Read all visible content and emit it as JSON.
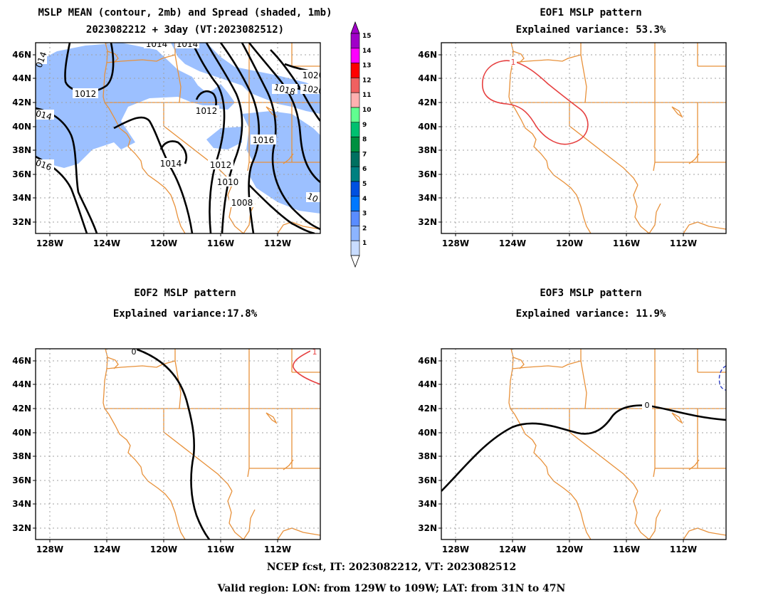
{
  "panels": [
    {
      "title1": "MSLP MEAN (contour, 2mb) and Spread (shaded, 1mb)",
      "title2": "2023082212 + 3day (VT:2023082512)"
    },
    {
      "title1": "EOF1 MSLP pattern",
      "title2": "Explained variance: 53.3%"
    },
    {
      "title1": "EOF2 MSLP pattern",
      "title2": "Explained variance:17.8%"
    },
    {
      "title1": "EOF3 MSLP pattern",
      "title2": "Explained variance: 11.9%"
    }
  ],
  "axes": {
    "lat_labels": [
      "46N",
      "44N",
      "42N",
      "40N",
      "38N",
      "36N",
      "34N",
      "32N"
    ],
    "lon_labels": [
      "128W",
      "124W",
      "120W",
      "116W",
      "112W"
    ]
  },
  "colorbar": {
    "labels": [
      "15",
      "14",
      "13",
      "12",
      "11",
      "10",
      "9",
      "8",
      "7",
      "6",
      "5",
      "4",
      "3",
      "2",
      "1"
    ],
    "colors": [
      "#a000c8",
      "#ff00ff",
      "#ff0000",
      "#f06060",
      "#ffb0b0",
      "#60ff90",
      "#00c070",
      "#009040",
      "#007060",
      "#008080",
      "#0050e0",
      "#0078ff",
      "#5a8cff",
      "#8cb4ff",
      "#c8dcff"
    ]
  },
  "contour_labels": {
    "mean": [
      "1014",
      "1014",
      "1012",
      "1012",
      "1014",
      "1016",
      "1012",
      "1010",
      "1008",
      "1018",
      "1020",
      "1020",
      "014",
      "014",
      "016",
      "10"
    ],
    "eof1": [
      "1"
    ],
    "eof2": [
      "0",
      "1"
    ],
    "eof3": [
      "0"
    ]
  },
  "footer": {
    "line1": "NCEP fcst, IT: 2023082212, VT: 2023082512",
    "line2": "Valid region: LON: from 129W to 109W; LAT: from 31N to 47N"
  }
}
